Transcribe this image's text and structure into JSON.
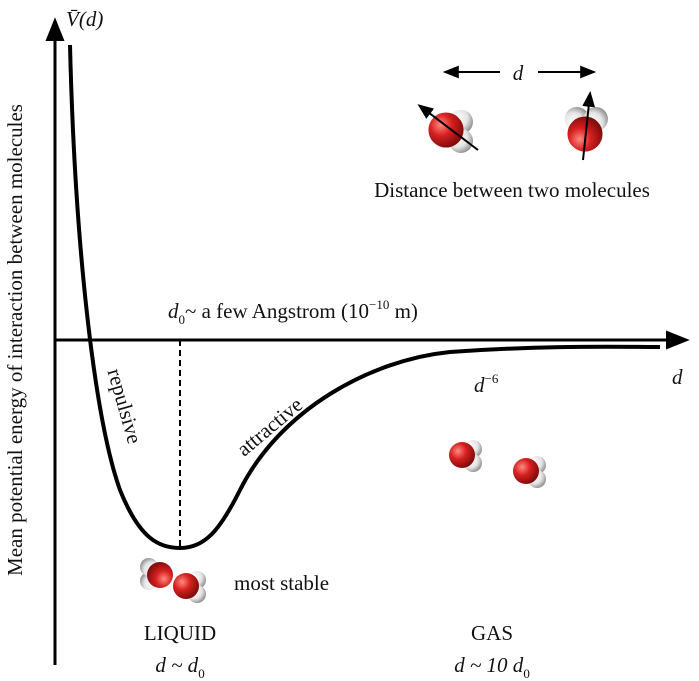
{
  "axes": {
    "y_label": "Mean potential energy of interaction between molecules",
    "y_symbol": "V̄(d)",
    "x_symbol": "d"
  },
  "annotations": {
    "scale": {
      "d": "d",
      "sub": "0",
      "text": "~ a few Angstrom (10",
      "sup": "−10",
      "unit": " m)"
    },
    "repulsive": "repulsive",
    "attractive": "attractive",
    "tail": {
      "d": "d",
      "sup": "−6"
    }
  },
  "separation": {
    "symbol": "d",
    "caption": "Distance between two molecules"
  },
  "minimum": {
    "label": "most stable"
  },
  "phases": [
    {
      "name": "LIQUID",
      "relation": "d ~ d",
      "sub": "0"
    },
    {
      "name": "GAS",
      "relation": "d ~ 10 d",
      "sub": "0"
    }
  ]
}
